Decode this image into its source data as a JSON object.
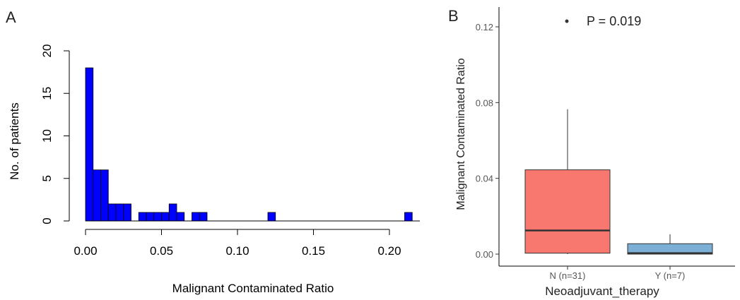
{
  "chart_data": [
    {
      "panel_label": "A",
      "type": "bar",
      "subtype": "histogram",
      "bin_width": 0.005,
      "bin_starts": [
        0.0,
        0.005,
        0.01,
        0.015,
        0.02,
        0.025,
        0.035,
        0.04,
        0.045,
        0.05,
        0.055,
        0.06,
        0.07,
        0.075,
        0.12,
        0.21
      ],
      "values": [
        18,
        6,
        6,
        2,
        2,
        2,
        1,
        1,
        1,
        1,
        2,
        1,
        1,
        1,
        1,
        1
      ],
      "xlabel": "Malignant Contaminated Ratio",
      "ylabel": "No. of patients",
      "xlim": [
        0,
        0.22
      ],
      "ylim": [
        0,
        20
      ],
      "x_ticks": [
        "0.00",
        "0.05",
        "0.10",
        "0.15",
        "0.20"
      ],
      "y_ticks": [
        "0",
        "5",
        "10",
        "15",
        "20"
      ],
      "bar_color": "#0000ff",
      "grid": false
    },
    {
      "panel_label": "B",
      "type": "box",
      "categories": [
        "N (n=31)",
        "Y (n=7)"
      ],
      "boxes": [
        {
          "category": "N (n=31)",
          "min": 0.0,
          "q1": 0.0005,
          "median": 0.0125,
          "q3": 0.0445,
          "max": 0.0765,
          "color": "#f8786f"
        },
        {
          "category": "Y (n=7)",
          "min": 0.0,
          "q1": 0.0,
          "median": 0.0005,
          "q3": 0.0055,
          "max": 0.0105,
          "color": "#7bafd6"
        }
      ],
      "xlabel": "Neoadjuvant_therapy",
      "ylabel": "Malignant Contaminated Ratio",
      "ylim": [
        -0.005,
        0.13
      ],
      "y_ticks": [
        "0.00",
        "0.04",
        "0.08",
        "0.12"
      ],
      "annotation": {
        "marker": "•",
        "text": "P = 0.019"
      },
      "grid": false
    }
  ]
}
